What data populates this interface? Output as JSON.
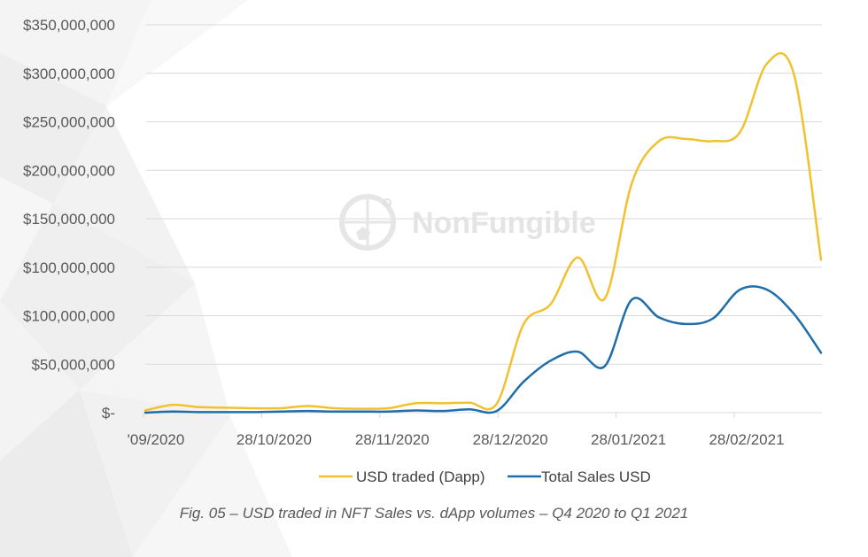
{
  "chart_data": {
    "type": "line",
    "title": "",
    "xlabel": "",
    "ylabel": "",
    "ylim": [
      0,
      350000000
    ],
    "x_tick_labels": [
      "'09/2020",
      "28/10/2020",
      "28/11/2020",
      "28/12/2020",
      "28/01/2021",
      "28/02/2021"
    ],
    "y_tick_labels": [
      "$-",
      "$50,000,000",
      "$100,000,000",
      "$100,000,000",
      "$150,000,000",
      "$200,000,000",
      "$250,000,000",
      "$300,000,000",
      "$350,000,000"
    ],
    "grid": true,
    "legend_position": "bottom",
    "x": [
      "2020-09-28",
      "2020-10-05",
      "2020-10-12",
      "2020-10-19",
      "2020-10-26",
      "2020-11-02",
      "2020-11-09",
      "2020-11-16",
      "2020-11-23",
      "2020-11-30",
      "2020-12-07",
      "2020-12-14",
      "2020-12-21",
      "2020-12-28",
      "2021-01-04",
      "2021-01-11",
      "2021-01-18",
      "2021-01-25",
      "2021-02-01",
      "2021-02-08",
      "2021-02-15",
      "2021-02-22",
      "2021-03-01",
      "2021-03-08",
      "2021-03-15",
      "2021-03-22"
    ],
    "series": [
      {
        "name": "USD traded (Dapp)",
        "color": "#f2c12e",
        "values": [
          2000000,
          7000000,
          5000000,
          4500000,
          4000000,
          4000000,
          6000000,
          4000000,
          3500000,
          4000000,
          8500000,
          8500000,
          9000000,
          8000000,
          80000000,
          98000000,
          140000000,
          103000000,
          207000000,
          245000000,
          247000000,
          245000000,
          253000000,
          315000000,
          305000000,
          138000000
        ]
      },
      {
        "name": "Total Sales USD",
        "color": "#1f6ea8",
        "values": [
          0,
          1000000,
          500000,
          500000,
          500000,
          1000000,
          1500000,
          1000000,
          1000000,
          1000000,
          2000000,
          1500000,
          3000000,
          1500000,
          28000000,
          47000000,
          55000000,
          42000000,
          102000000,
          86000000,
          80000000,
          85000000,
          111000000,
          111000000,
          89000000,
          54000000
        ]
      }
    ]
  },
  "watermark": {
    "text": "NonFungible",
    "icon": "nonfungible-logo-icon"
  },
  "caption": "Fig. 05 – USD traded in NFT Sales vs. dApp volumes – Q4 2020 to Q1 2021"
}
